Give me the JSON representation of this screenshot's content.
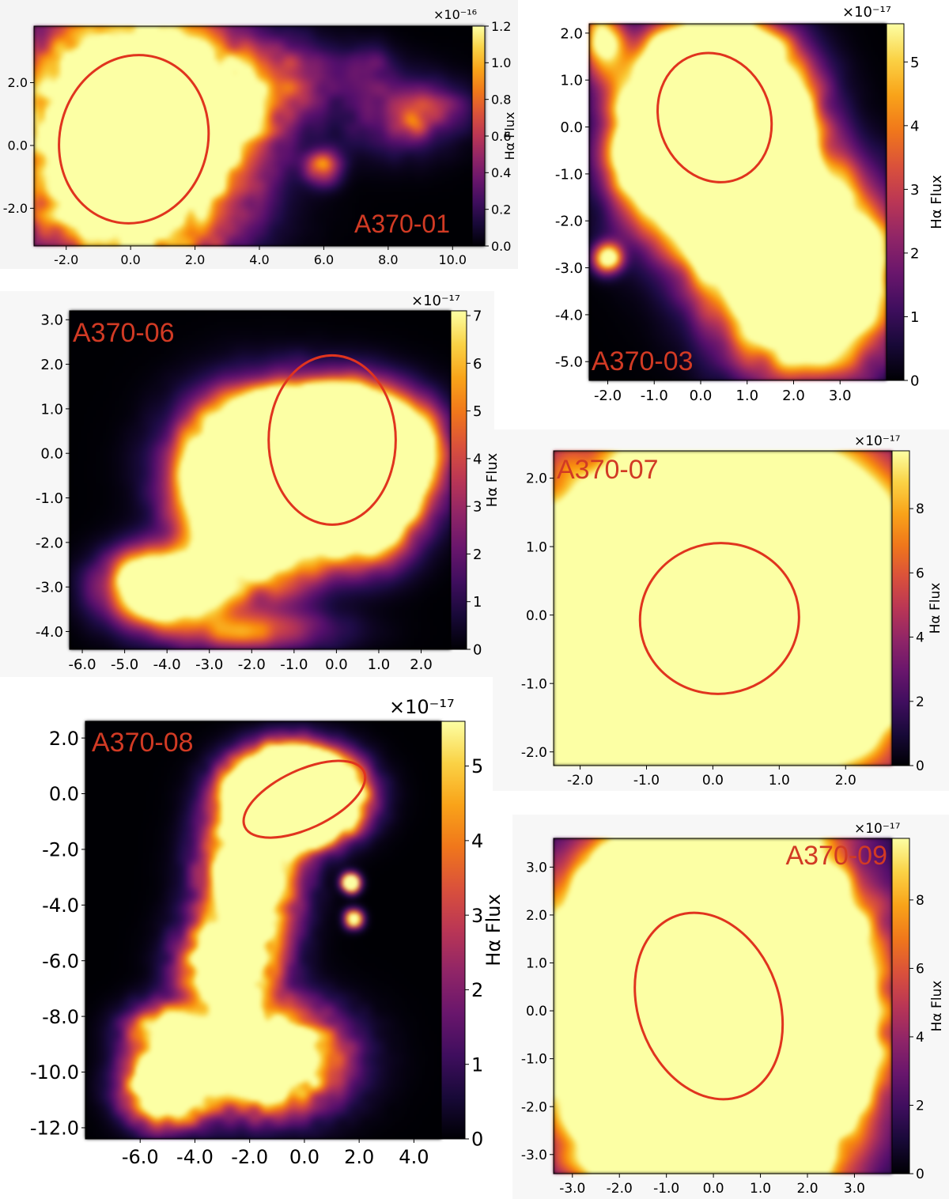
{
  "figure": {
    "colormap": "inferno",
    "ellipse_color": "#e0341e",
    "label_color": "#d13a24"
  },
  "chart_data": [
    {
      "type": "heatmap",
      "id": "a370-01",
      "title": "A370-01",
      "cbar_label": "Hα Flux",
      "cbar_multiplier": "×10⁻¹⁶",
      "cbar_range": [
        0.0,
        1.2
      ],
      "cbar_ticks": [
        "0.0",
        "0.2",
        "0.4",
        "0.6",
        "0.8",
        "1.0",
        "1.2"
      ],
      "xlim": [
        -3.0,
        11.0
      ],
      "ylim": [
        -3.2,
        3.8
      ],
      "xticks": [
        -2.0,
        0.0,
        2.0,
        4.0,
        6.0,
        8.0,
        10.0
      ],
      "yticks": [
        -2.0,
        0.0,
        2.0
      ],
      "xtick_labels": [
        "-2.0",
        "0.0",
        "2.0",
        "4.0",
        "6.0",
        "8.0",
        "10.0"
      ],
      "ytick_labels": [
        "-2.0",
        "0.0",
        "2.0"
      ],
      "ellipse": {
        "cx": 0.1,
        "cy": 0.2,
        "rx": 2.3,
        "ry": 2.7,
        "angle": 15
      },
      "blobs": [
        {
          "x": 0.0,
          "y": 0.3,
          "sx": 1.9,
          "sy": 2.3,
          "a": 3.2
        },
        {
          "x": 2.3,
          "y": 1.3,
          "sx": 1.2,
          "sy": 1.0,
          "a": 0.6
        },
        {
          "x": 3.5,
          "y": 1.7,
          "sx": 1.5,
          "sy": 0.9,
          "a": 0.35
        },
        {
          "x": 5.0,
          "y": 2.3,
          "sx": 1.0,
          "sy": 0.7,
          "a": 0.25
        },
        {
          "x": 2.8,
          "y": 0.3,
          "sx": 1.0,
          "sy": 1.0,
          "a": 0.3
        },
        {
          "x": 6.0,
          "y": -0.7,
          "sx": 0.35,
          "sy": 0.35,
          "a": 0.7
        },
        {
          "x": 8.3,
          "y": 1.0,
          "sx": 1.1,
          "sy": 0.8,
          "a": 0.3
        },
        {
          "x": 9.3,
          "y": 1.2,
          "sx": 0.8,
          "sy": 0.5,
          "a": 0.25
        },
        {
          "x": 7.4,
          "y": 2.5,
          "sx": 0.5,
          "sy": 0.5,
          "a": 0.2
        },
        {
          "x": 8.8,
          "y": 0.6,
          "sx": 0.25,
          "sy": 0.25,
          "a": 0.3
        }
      ]
    },
    {
      "type": "heatmap",
      "id": "a370-03",
      "title": "A370-03",
      "cbar_label": "Hα Flux",
      "cbar_multiplier": "×10⁻¹⁷",
      "cbar_range": [
        0,
        5.6
      ],
      "cbar_ticks": [
        "0",
        "1",
        "2",
        "3",
        "4",
        "5"
      ],
      "xlim": [
        -2.4,
        4.0
      ],
      "ylim": [
        -5.4,
        2.2
      ],
      "xticks": [
        -2.0,
        -1.0,
        0.0,
        1.0,
        2.0,
        3.0
      ],
      "yticks": [
        -5.0,
        -4.0,
        -3.0,
        -2.0,
        -1.0,
        0.0,
        1.0,
        2.0
      ],
      "xtick_labels": [
        "-2.0",
        "-1.0",
        "0.0",
        "1.0",
        "2.0",
        "3.0"
      ],
      "ytick_labels": [
        "-5.0",
        "-4.0",
        "-3.0",
        "-2.0",
        "-1.0",
        "0.0",
        "1.0",
        "2.0"
      ],
      "ellipse": {
        "cx": 0.3,
        "cy": 0.2,
        "rx": 1.2,
        "ry": 1.4,
        "angle": -20
      },
      "blobs": [
        {
          "x": 0.3,
          "y": 0.1,
          "sx": 0.9,
          "sy": 1.0,
          "a": 12
        },
        {
          "x": -0.8,
          "y": -0.6,
          "sx": 0.6,
          "sy": 0.4,
          "a": 3
        },
        {
          "x": 1.0,
          "y": -1.5,
          "sx": 1.2,
          "sy": 0.8,
          "a": 2.5
        },
        {
          "x": 2.0,
          "y": -2.8,
          "sx": 1.1,
          "sy": 0.8,
          "a": 3.2
        },
        {
          "x": 2.3,
          "y": -3.9,
          "sx": 1.0,
          "sy": 1.0,
          "a": 1.6
        },
        {
          "x": -2.1,
          "y": 1.8,
          "sx": 0.3,
          "sy": 0.5,
          "a": 1.0
        },
        {
          "x": -2.0,
          "y": -2.8,
          "sx": 0.2,
          "sy": 0.2,
          "a": 1.2
        },
        {
          "x": 3.0,
          "y": -2.6,
          "sx": 0.3,
          "sy": 0.3,
          "a": 1.4
        }
      ]
    },
    {
      "type": "heatmap",
      "id": "a370-06",
      "title": "A370-06",
      "cbar_label": "Hα Flux",
      "cbar_multiplier": "×10⁻¹⁷",
      "cbar_range": [
        0,
        7.1
      ],
      "cbar_ticks": [
        "0",
        "1",
        "2",
        "3",
        "4",
        "5",
        "6",
        "7"
      ],
      "xlim": [
        -6.3,
        2.7
      ],
      "ylim": [
        -4.4,
        3.2
      ],
      "xticks": [
        -6.0,
        -5.0,
        -4.0,
        -3.0,
        -2.0,
        -1.0,
        0.0,
        1.0,
        2.0
      ],
      "yticks": [
        -4.0,
        -3.0,
        -2.0,
        -1.0,
        0.0,
        1.0,
        2.0,
        3.0
      ],
      "xtick_labels": [
        "-6.0",
        "-5.0",
        "-4.0",
        "-3.0",
        "-2.0",
        "-1.0",
        "0.0",
        "1.0",
        "2.0"
      ],
      "ytick_labels": [
        "-4.0",
        "-3.0",
        "-2.0",
        "-1.0",
        "0.0",
        "1.0",
        "2.0",
        "3.0"
      ],
      "ellipse": {
        "cx": -0.1,
        "cy": 0.3,
        "rx": 1.5,
        "ry": 1.9,
        "angle": 0
      },
      "blobs": [
        {
          "x": 0.0,
          "y": -0.1,
          "sx": 1.0,
          "sy": 0.7,
          "a": 16
        },
        {
          "x": -1.8,
          "y": -0.4,
          "sx": 1.0,
          "sy": 0.9,
          "a": 4
        },
        {
          "x": -1.8,
          "y": -1.5,
          "sx": 0.9,
          "sy": 0.9,
          "a": 2.5
        },
        {
          "x": -4.0,
          "y": -3.0,
          "sx": 0.8,
          "sy": 0.5,
          "a": 2.8
        },
        {
          "x": 0.6,
          "y": -1.6,
          "sx": 0.7,
          "sy": 0.6,
          "a": 1.5
        },
        {
          "x": -2.0,
          "y": -4.0,
          "sx": 1.2,
          "sy": 0.3,
          "a": 0.6
        }
      ]
    },
    {
      "type": "heatmap",
      "id": "a370-07",
      "title": "A370-07",
      "cbar_label": "Hα Flux",
      "cbar_multiplier": "×10⁻¹⁷",
      "cbar_range": [
        0,
        9.8
      ],
      "cbar_ticks": [
        "0",
        "2",
        "4",
        "6",
        "8"
      ],
      "xlim": [
        -2.4,
        2.7
      ],
      "ylim": [
        -2.2,
        2.4
      ],
      "xticks": [
        -2.0,
        -1.0,
        0.0,
        1.0,
        2.0
      ],
      "yticks": [
        -2.0,
        -1.0,
        0.0,
        1.0,
        2.0
      ],
      "xtick_labels": [
        "-2.0",
        "-1.0",
        "0.0",
        "1.0",
        "2.0"
      ],
      "ytick_labels": [
        "-2.0",
        "-1.0",
        "0.0",
        "1.0",
        "2.0"
      ],
      "ellipse": {
        "cx": 0.1,
        "cy": -0.05,
        "rx": 1.2,
        "ry": 1.1,
        "angle": -10
      },
      "blobs": [
        {
          "x": 0.1,
          "y": -0.05,
          "sx": 1.05,
          "sy": 0.95,
          "a": 25
        },
        {
          "x": 0.1,
          "y": 0.0,
          "sx": 1.6,
          "sy": 1.5,
          "a": 4
        },
        {
          "x": -1.7,
          "y": -1.8,
          "sx": 0.5,
          "sy": 0.3,
          "a": 3
        },
        {
          "x": 1.2,
          "y": -1.55,
          "sx": 0.15,
          "sy": 0.15,
          "a": 2.5
        },
        {
          "x": -1.0,
          "y": -1.5,
          "sx": 0.2,
          "sy": 0.2,
          "a": 1.2
        }
      ]
    },
    {
      "type": "heatmap",
      "id": "a370-08",
      "title": "A370-08",
      "cbar_label": "Hα Flux",
      "cbar_multiplier": "×10⁻¹⁷",
      "cbar_range": [
        0,
        5.6
      ],
      "cbar_ticks": [
        "0",
        "1",
        "2",
        "3",
        "4",
        "5"
      ],
      "xlim": [
        -8.0,
        5.0
      ],
      "ylim": [
        -12.4,
        2.6
      ],
      "xticks": [
        -6.0,
        -4.0,
        -2.0,
        0.0,
        2.0,
        4.0
      ],
      "yticks": [
        -12.0,
        -10.0,
        -8.0,
        -6.0,
        -4.0,
        -2.0,
        0.0,
        2.0
      ],
      "xtick_labels": [
        "-6.0",
        "-4.0",
        "-2.0",
        "0.0",
        "2.0",
        "4.0"
      ],
      "ytick_labels": [
        "-12.0",
        "-10.0",
        "-8.0",
        "-6.0",
        "-4.0",
        "-2.0",
        "0.0",
        "2.0"
      ],
      "ellipse": {
        "cx": 0.0,
        "cy": -0.2,
        "rx": 2.4,
        "ry": 1.05,
        "angle": -25
      },
      "blobs": [
        {
          "x": -0.4,
          "y": -0.1,
          "sx": 1.1,
          "sy": 0.8,
          "a": 14
        },
        {
          "x": -2.0,
          "y": -3.0,
          "sx": 1.0,
          "sy": 1.5,
          "a": 2.2
        },
        {
          "x": -2.8,
          "y": -6.2,
          "sx": 1.0,
          "sy": 1.0,
          "a": 2.0
        },
        {
          "x": -1.5,
          "y": -9.5,
          "sx": 1.6,
          "sy": 1.1,
          "a": 2.4
        },
        {
          "x": -5.0,
          "y": -10.5,
          "sx": 0.9,
          "sy": 0.8,
          "a": 2.5
        },
        {
          "x": -5.0,
          "y": -8.5,
          "sx": 0.9,
          "sy": 0.6,
          "a": 1.2
        },
        {
          "x": -2.0,
          "y": -9.0,
          "sx": 0.4,
          "sy": 0.3,
          "a": 2.5
        },
        {
          "x": 1.7,
          "y": -3.2,
          "sx": 0.2,
          "sy": 0.2,
          "a": 2.0
        },
        {
          "x": 1.8,
          "y": -4.5,
          "sx": 0.2,
          "sy": 0.2,
          "a": 1.6
        }
      ]
    },
    {
      "type": "heatmap",
      "id": "a370-09",
      "title": "A370-09",
      "cbar_label": "Hα Flux",
      "cbar_multiplier": "×10⁻¹⁷",
      "cbar_range": [
        0,
        9.8
      ],
      "cbar_ticks": [
        "0",
        "2",
        "4",
        "6",
        "8"
      ],
      "xlim": [
        -3.4,
        3.8
      ],
      "ylim": [
        -3.4,
        3.6
      ],
      "xticks": [
        -3.0,
        -2.0,
        -1.0,
        0.0,
        1.0,
        2.0,
        3.0
      ],
      "yticks": [
        -3.0,
        -2.0,
        -1.0,
        0.0,
        1.0,
        2.0,
        3.0
      ],
      "xtick_labels": [
        "-3.0",
        "-2.0",
        "-1.0",
        "0.0",
        "1.0",
        "2.0",
        "3.0"
      ],
      "ytick_labels": [
        "-3.0",
        "-2.0",
        "-1.0",
        "0.0",
        "1.0",
        "2.0",
        "3.0"
      ],
      "ellipse": {
        "cx": -0.1,
        "cy": 0.1,
        "rx": 1.5,
        "ry": 2.0,
        "angle": -20
      },
      "blobs": [
        {
          "x": -0.1,
          "y": -0.05,
          "sx": 1.35,
          "sy": 1.7,
          "a": 24
        },
        {
          "x": 1.4,
          "y": -1.7,
          "sx": 0.3,
          "sy": 0.3,
          "a": 5
        },
        {
          "x": -0.1,
          "y": 0.0,
          "sx": 1.9,
          "sy": 2.3,
          "a": 2
        },
        {
          "x": -1.8,
          "y": -3.0,
          "sx": 0.2,
          "sy": 0.2,
          "a": 2.2
        },
        {
          "x": -2.3,
          "y": -2.9,
          "sx": 0.2,
          "sy": 0.2,
          "a": 1.0
        }
      ]
    }
  ]
}
